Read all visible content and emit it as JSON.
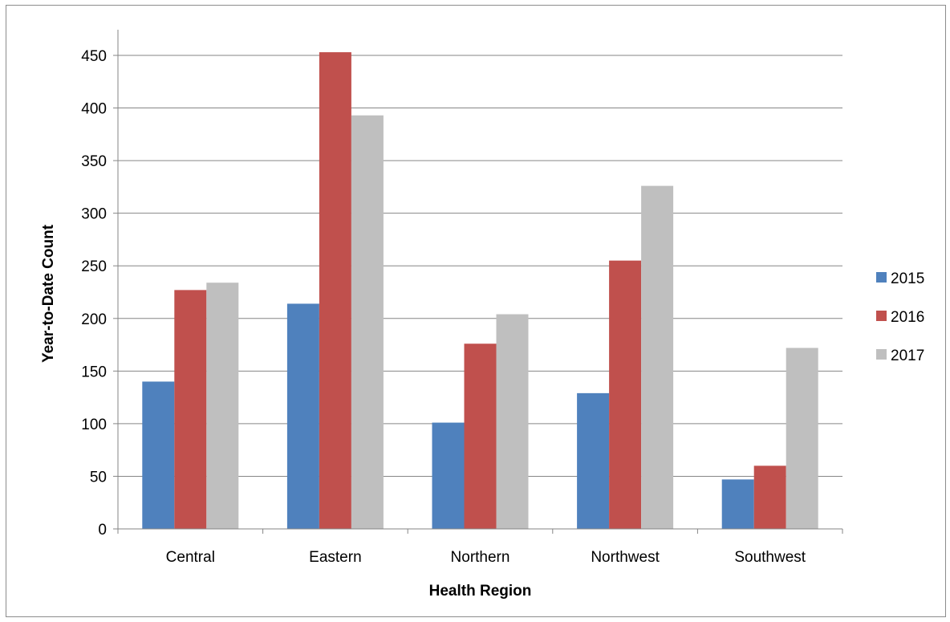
{
  "chart_data": {
    "type": "bar",
    "title": "",
    "xlabel": "Health Region",
    "ylabel": "Year-to-Date Count",
    "categories": [
      "Central",
      "Eastern",
      "Northern",
      "Northwest",
      "Southwest"
    ],
    "series": [
      {
        "name": "2015",
        "color": "#4f81bd",
        "values": [
          140,
          214,
          101,
          129,
          47
        ]
      },
      {
        "name": "2016",
        "color": "#c0504d",
        "values": [
          227,
          453,
          176,
          255,
          60
        ]
      },
      {
        "name": "2017",
        "color": "#bfbfbf",
        "values": [
          234,
          393,
          204,
          326,
          172
        ]
      }
    ],
    "ylim": [
      0,
      450
    ],
    "yticks": [
      "0",
      "50",
      "100",
      "150",
      "200",
      "250",
      "300",
      "350",
      "400",
      "450"
    ],
    "grid": true,
    "legend_position": "right"
  }
}
